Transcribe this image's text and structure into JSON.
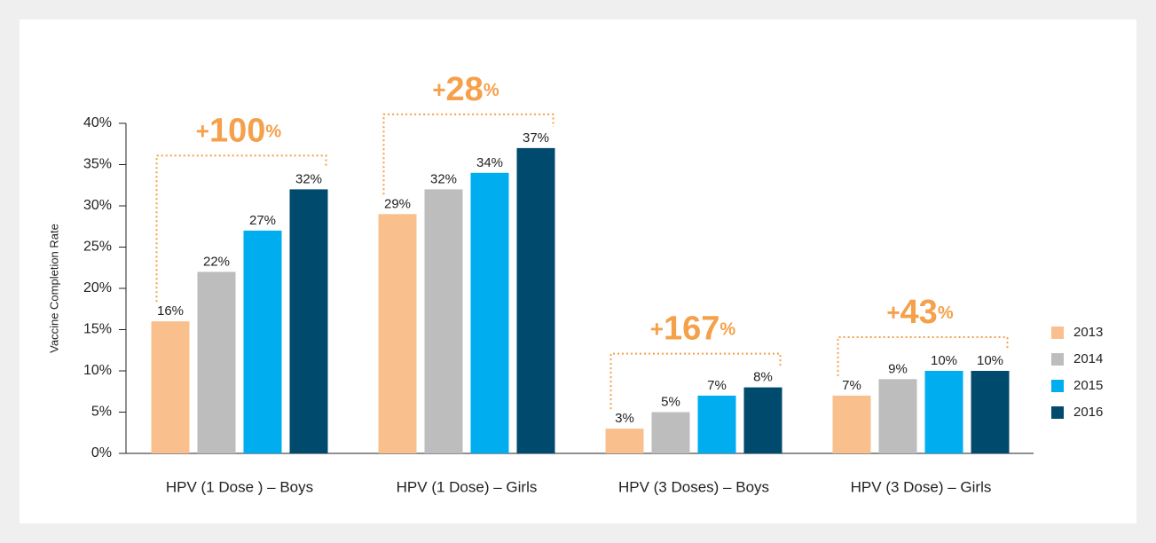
{
  "chart_data": {
    "type": "bar",
    "y_label": "Vaccine  Completion Rate",
    "categories": [
      "HPV (1 Dose ) – Boys",
      "HPV (1 Dose) – Girls",
      "HPV (3 Doses) – Boys",
      "HPV (3 Dose) – Girls"
    ],
    "series": [
      {
        "name": "2013",
        "color": "#f9c08e",
        "values": [
          16,
          29,
          3,
          7
        ],
        "value_labels": [
          "16%",
          "29%",
          "3%",
          "7%"
        ]
      },
      {
        "name": "2014",
        "color": "#bdbdbd",
        "values": [
          22,
          32,
          5,
          9
        ],
        "value_labels": [
          "22%",
          "32%",
          "5%",
          "9%"
        ]
      },
      {
        "name": "2015",
        "color": "#00aeef",
        "values": [
          27,
          34,
          7,
          10
        ],
        "value_labels": [
          "27%",
          "34%",
          "7%",
          "10%"
        ]
      },
      {
        "name": "2016",
        "color": "#004a6e",
        "values": [
          32,
          37,
          8,
          10
        ],
        "value_labels": [
          "32%",
          "37%",
          "8%",
          "10%"
        ]
      }
    ],
    "annotations": [
      "+100%",
      "+28%",
      "+167%",
      "+43%"
    ],
    "annotation_color": "#f5a04a",
    "ylim": [
      0,
      40
    ],
    "yticks": [
      {
        "value": 0,
        "label": "0%"
      },
      {
        "value": 5,
        "label": "5%"
      },
      {
        "value": 10,
        "label": "10%"
      },
      {
        "value": 15,
        "label": "15%"
      },
      {
        "value": 20,
        "label": "20%"
      },
      {
        "value": 25,
        "label": "25%"
      },
      {
        "value": 30,
        "label": "30%"
      },
      {
        "value": 35,
        "label": "35%"
      },
      {
        "value": 40,
        "label": "40%"
      }
    ],
    "grid": false,
    "legend": "right"
  }
}
